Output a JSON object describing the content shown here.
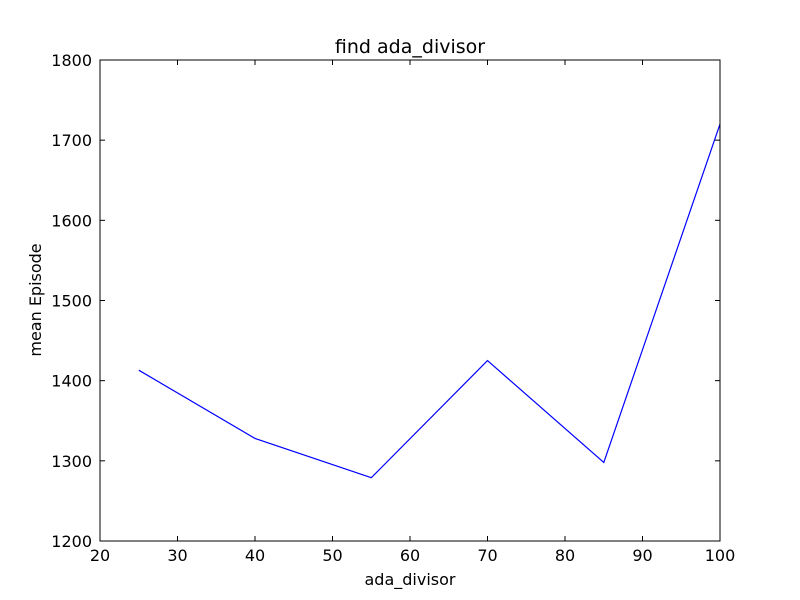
{
  "chart_data": {
    "type": "line",
    "title": "find ada_divisor",
    "xlabel": "ada_divisor",
    "ylabel": "mean Episode",
    "xlim": [
      20,
      100
    ],
    "ylim": [
      1200,
      1800
    ],
    "xticks": [
      20,
      30,
      40,
      50,
      60,
      70,
      80,
      90,
      100
    ],
    "yticks": [
      1200,
      1300,
      1400,
      1500,
      1600,
      1700,
      1800
    ],
    "grid": false,
    "legend": "none",
    "series": [
      {
        "color": "#0000ff",
        "x": [
          25,
          40,
          55,
          70,
          85,
          100
        ],
        "y": [
          1413,
          1328,
          1279,
          1425,
          1298,
          1720
        ]
      }
    ]
  }
}
